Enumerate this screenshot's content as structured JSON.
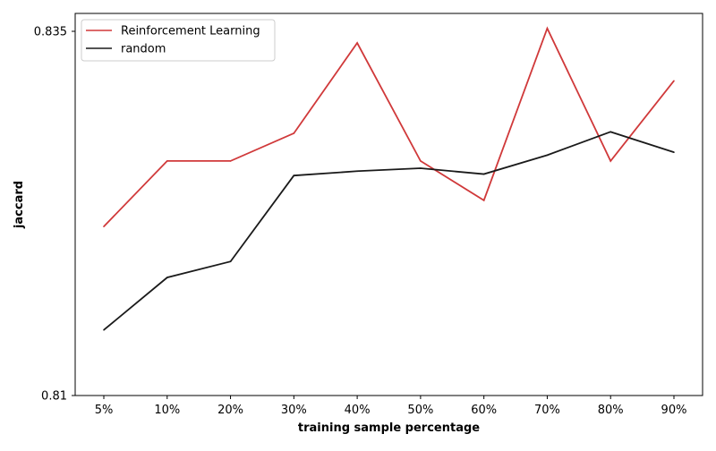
{
  "chart_data": {
    "type": "line",
    "title": "",
    "xlabel": "training sample percentage",
    "ylabel": "jaccard",
    "categories": [
      "5%",
      "10%",
      "20%",
      "30%",
      "40%",
      "50%",
      "60%",
      "70%",
      "80%",
      "90%"
    ],
    "ylim": [
      0.81,
      0.835
    ],
    "yticks": [
      "0.81",
      "0.835"
    ],
    "grid": false,
    "legend_position": "top-left",
    "series": [
      {
        "name": "Reinforcement Learning",
        "color": "#d0393a",
        "values": [
          0.8216,
          0.8261,
          0.8261,
          0.828,
          0.8342,
          0.8261,
          0.8234,
          0.8352,
          0.8261,
          0.8316
        ]
      },
      {
        "name": "random",
        "color": "#1a1a1a",
        "values": [
          0.8145,
          0.8181,
          0.8192,
          0.8251,
          0.8254,
          0.8256,
          0.8252,
          0.8265,
          0.8281,
          0.8267
        ]
      }
    ]
  }
}
